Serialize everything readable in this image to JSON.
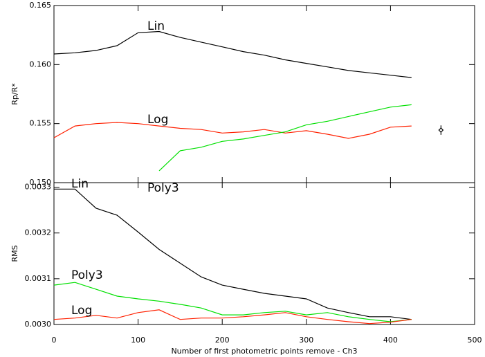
{
  "chart_data": [
    {
      "type": "line",
      "ylabel": "Rp/R*",
      "x": [
        0,
        25,
        50,
        75,
        100,
        125,
        150,
        175,
        200,
        225,
        250,
        275,
        300,
        325,
        350,
        375,
        400,
        425
      ],
      "xlim": [
        0,
        500
      ],
      "xticks": [
        0,
        100,
        200,
        300,
        400,
        500
      ],
      "ylim": [
        0.15,
        0.165
      ],
      "yticks": [
        {
          "value": 0.15,
          "label": "0.150"
        },
        {
          "value": 0.155,
          "label": "0.155"
        },
        {
          "value": 0.16,
          "label": "0.160"
        },
        {
          "value": 0.165,
          "label": "0.165"
        }
      ],
      "series": [
        {
          "name": "Lin",
          "color": "#000000",
          "values": [
            0.1609,
            0.161,
            0.1612,
            0.1616,
            0.1627,
            0.1628,
            0.1623,
            0.1619,
            0.1615,
            0.1611,
            0.1608,
            0.1604,
            0.1601,
            0.1598,
            0.1595,
            0.1593,
            0.1591,
            0.1589
          ]
        },
        {
          "name": "Log",
          "color": "#ff2000",
          "values": [
            0.1538,
            0.1548,
            0.155,
            0.1551,
            0.155,
            0.1548,
            0.1546,
            0.1545,
            0.1542,
            0.1543,
            0.1545,
            0.1542,
            0.1544,
            0.1541,
            0.15375,
            0.1541,
            0.1547,
            0.1548
          ]
        },
        {
          "name": "Poly3",
          "color": "#00e000",
          "values": [
            null,
            null,
            null,
            null,
            null,
            0.151,
            0.1527,
            0.153,
            0.1535,
            0.1537,
            0.154,
            0.1543,
            0.1549,
            0.1552,
            0.1556,
            0.156,
            0.1564,
            0.1566
          ]
        }
      ],
      "annotations": [
        "Lin",
        "Log"
      ],
      "points": [
        {
          "x": 460,
          "y": 0.15445,
          "error": 0.0004
        }
      ]
    },
    {
      "type": "line",
      "ylabel": "RMS",
      "xlabel": "Number of first photometric points remove - Ch3",
      "x": [
        0,
        25,
        50,
        75,
        100,
        125,
        150,
        175,
        200,
        225,
        250,
        275,
        300,
        325,
        350,
        375,
        400,
        425
      ],
      "xlim": [
        0,
        500
      ],
      "xticks": [
        0,
        100,
        200,
        300,
        400,
        500
      ],
      "ylim": [
        0.003,
        0.00331
      ],
      "yticks": [
        {
          "value": 0.003,
          "label": "0.0030"
        },
        {
          "value": 0.0031,
          "label": "0.0031"
        },
        {
          "value": 0.0032,
          "label": "0.0032"
        },
        {
          "value": 0.0033,
          "label": "0.0033"
        }
      ],
      "series": [
        {
          "name": "Lin",
          "color": "#000000",
          "values": [
            0.003296,
            0.003296,
            0.003254,
            0.003239,
            0.003202,
            0.003164,
            0.003134,
            0.003104,
            0.003086,
            0.003077,
            0.003068,
            0.003062,
            0.003056,
            0.003036,
            0.003026,
            0.003017,
            0.003017,
            0.003011
          ]
        },
        {
          "name": "Poly3",
          "color": "#00e000",
          "values": [
            0.003086,
            0.003092,
            0.003077,
            0.003062,
            0.003056,
            0.003051,
            0.003044,
            0.003036,
            0.003021,
            0.003021,
            0.003026,
            0.003029,
            0.003021,
            0.003026,
            0.003017,
            0.003011,
            0.003006,
            0.003011
          ]
        },
        {
          "name": "Log",
          "color": "#ff2000",
          "values": [
            0.003011,
            0.003014,
            0.00302,
            0.003014,
            0.003026,
            0.003032,
            0.003011,
            0.003014,
            0.003014,
            0.003017,
            0.003021,
            0.003026,
            0.003017,
            0.003011,
            0.003006,
            0.003002,
            0.003005,
            0.003011
          ]
        }
      ],
      "annotations": [
        "Lin",
        "Poly3",
        "Poly3",
        "Log"
      ]
    }
  ]
}
